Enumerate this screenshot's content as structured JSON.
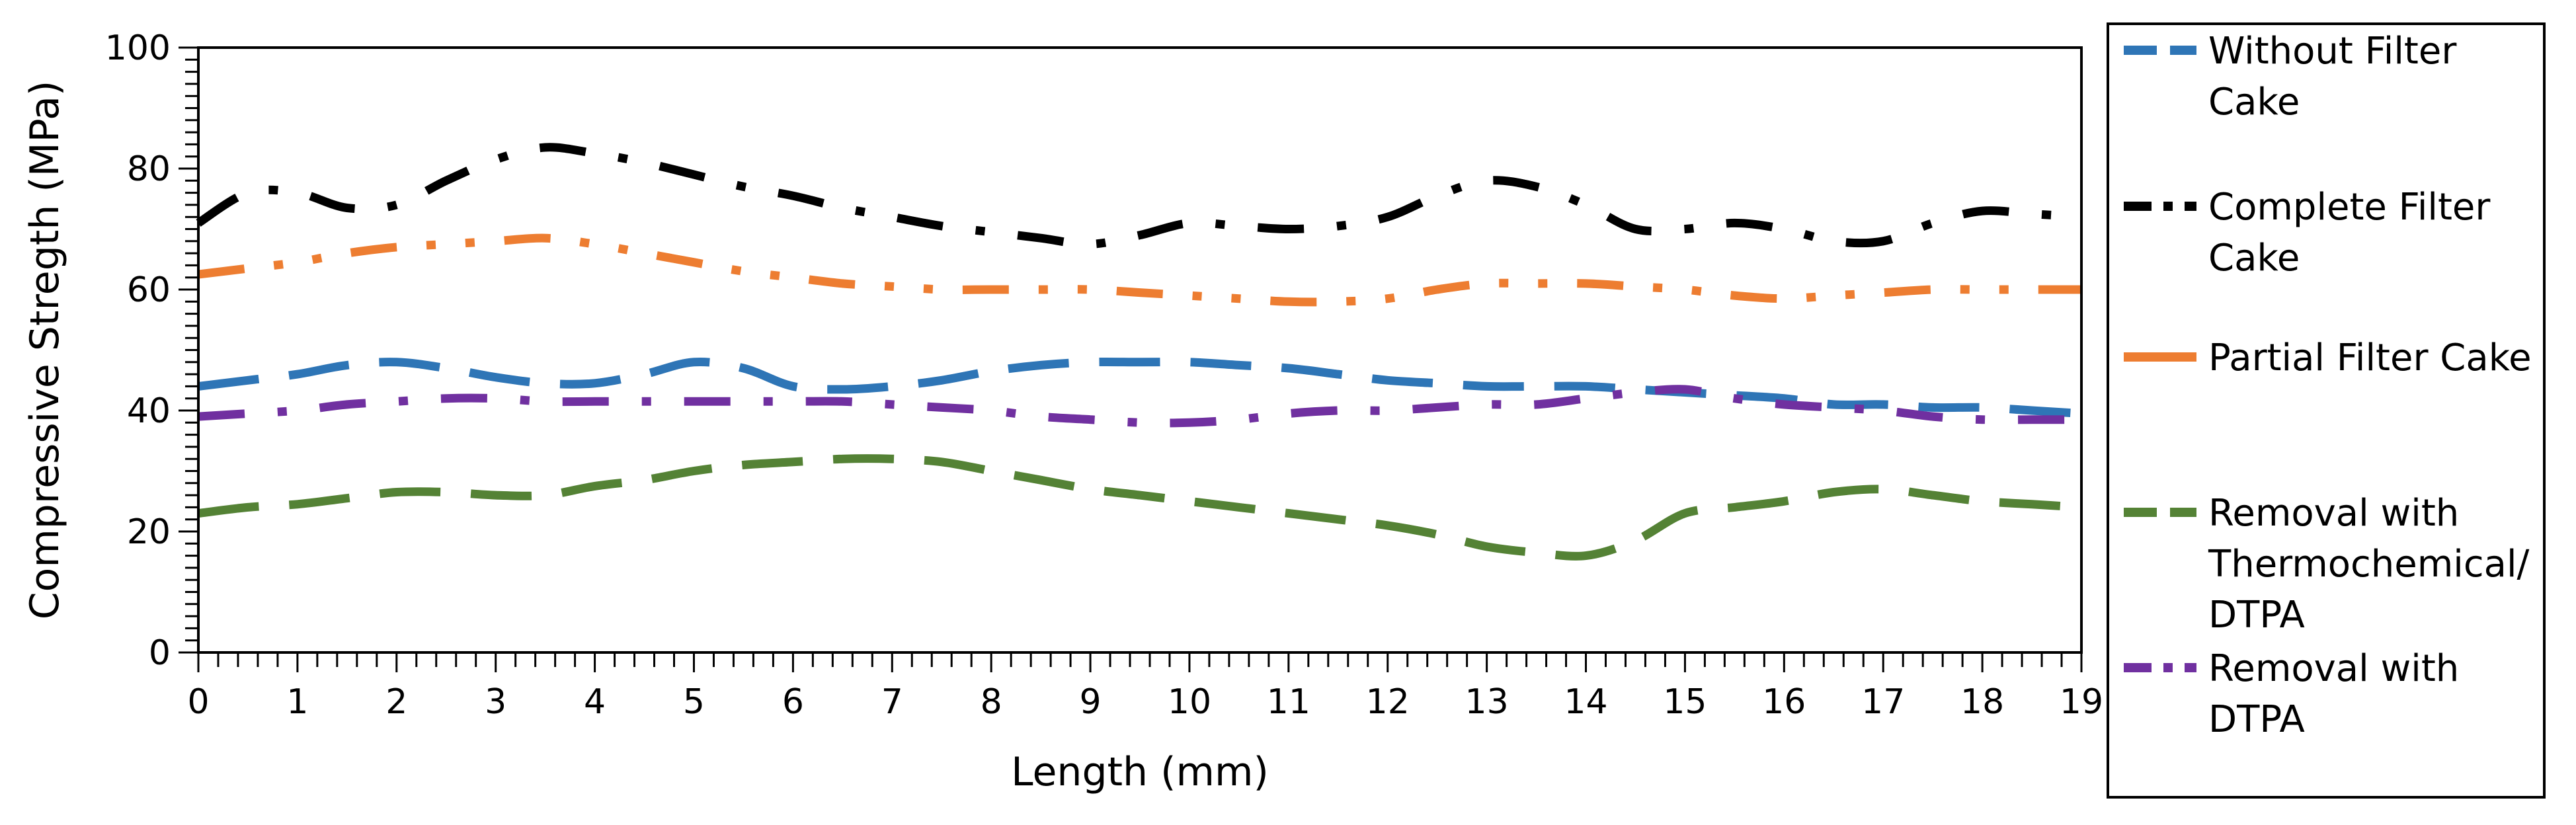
{
  "chart_data": {
    "type": "line",
    "title": "",
    "xlabel": "Length (mm)",
    "ylabel": "Compressive Stregth (MPa)",
    "xlim": [
      0,
      19
    ],
    "ylim": [
      0,
      100
    ],
    "x_ticks": [
      0,
      1,
      2,
      3,
      4,
      5,
      6,
      7,
      8,
      9,
      10,
      11,
      12,
      13,
      14,
      15,
      16,
      17,
      18,
      19
    ],
    "y_ticks": [
      0,
      20,
      40,
      60,
      80,
      100
    ],
    "legend_position": "right",
    "series": [
      {
        "name": "Without Filter Cake",
        "legend_lines": [
          "Without Filter",
          "Cake"
        ],
        "color": "#2E75B6",
        "dash": "long-dash",
        "x": [
          0,
          0.5,
          1,
          1.5,
          2,
          2.5,
          3,
          3.5,
          4,
          4.5,
          5,
          5.5,
          6,
          6.5,
          7,
          7.5,
          8,
          8.5,
          9,
          9.5,
          10,
          10.5,
          11,
          11.5,
          12,
          12.5,
          13,
          13.5,
          14,
          14.5,
          15,
          15.5,
          16,
          16.5,
          17,
          17.5,
          18,
          18.5,
          19
        ],
        "values": [
          44,
          45,
          46,
          47.5,
          48,
          47,
          45.5,
          44.5,
          44.5,
          46,
          48,
          47,
          44,
          43.5,
          44,
          45,
          46.5,
          47.5,
          48,
          48,
          48,
          47.5,
          47,
          46,
          45,
          44.5,
          44,
          44,
          44,
          43.5,
          43,
          42.5,
          42,
          41,
          41,
          40.5,
          40.5,
          40,
          39.5
        ]
      },
      {
        "name": "Complete Filter Cake",
        "legend_lines": [
          "Complete Filter",
          "Cake"
        ],
        "color": "#000000",
        "dash": "dash-dot",
        "x": [
          0,
          0.5,
          1,
          1.5,
          2,
          2.5,
          3,
          3.5,
          4,
          4.5,
          5,
          5.5,
          6,
          6.5,
          7,
          7.5,
          8,
          8.5,
          9,
          9.5,
          10,
          10.5,
          11,
          11.5,
          12,
          12.5,
          13,
          13.5,
          14,
          14.5,
          15,
          15.5,
          16,
          16.5,
          17,
          17.5,
          18,
          18.5,
          19
        ],
        "values": [
          71,
          76,
          76,
          73.5,
          74,
          78,
          81.5,
          83.5,
          82.5,
          81,
          79,
          77,
          75.5,
          73.5,
          72,
          70.5,
          69.5,
          68.5,
          67.5,
          69,
          71,
          70.5,
          70,
          70.5,
          72,
          75.5,
          78,
          77,
          74,
          70,
          70,
          71,
          70,
          68,
          68,
          71,
          73,
          72.5,
          72
        ]
      },
      {
        "name": "Partial Filter Cake",
        "legend_lines": [
          "Partial Filter Cake"
        ],
        "color": "#ED7D31",
        "dash": "dash-dot-dot",
        "x": [
          0,
          0.5,
          1,
          1.5,
          2,
          2.5,
          3,
          3.5,
          4,
          4.5,
          5,
          5.5,
          6,
          6.5,
          7,
          7.5,
          8,
          8.5,
          9,
          9.5,
          10,
          10.5,
          11,
          11.5,
          12,
          12.5,
          13,
          13.5,
          14,
          14.5,
          15,
          15.5,
          16,
          16.5,
          17,
          17.5,
          18,
          18.5,
          19
        ],
        "values": [
          62.5,
          63.5,
          64.5,
          66,
          67,
          67.5,
          68,
          68.5,
          67.5,
          66,
          64.5,
          63,
          62,
          61,
          60.5,
          60,
          60,
          60,
          60,
          59.5,
          59,
          58.5,
          58,
          58,
          58.5,
          60,
          61,
          61,
          61,
          60.5,
          60,
          59,
          58.5,
          59,
          59.5,
          60,
          60,
          60,
          60
        ]
      },
      {
        "name": "Removal with Thermochemical/ DTPA",
        "legend_lines": [
          "Removal with",
          "Thermochemical/",
          "DTPA"
        ],
        "color": "#548235",
        "dash": "long-dash",
        "x": [
          0,
          0.5,
          1,
          1.5,
          2,
          2.5,
          3,
          3.5,
          4,
          4.5,
          5,
          5.5,
          6,
          6.5,
          7,
          7.5,
          8,
          8.5,
          9,
          9.5,
          10,
          10.5,
          11,
          11.5,
          12,
          12.5,
          13,
          13.5,
          14,
          14.5,
          15,
          15.5,
          16,
          16.5,
          17,
          17.5,
          18,
          18.5,
          19
        ],
        "values": [
          23,
          24,
          24.5,
          25.5,
          26.5,
          26.5,
          26,
          26,
          27.5,
          28.5,
          30,
          31,
          31.5,
          32,
          32,
          31.5,
          30,
          28.5,
          27,
          26,
          25,
          24,
          23,
          22,
          21,
          19.5,
          17.5,
          16.5,
          16,
          18.5,
          23,
          24,
          25,
          26.5,
          27,
          26,
          25,
          24.5,
          24
        ]
      },
      {
        "name": "Removal with DTPA",
        "legend_lines": [
          "Removal with",
          "DTPA"
        ],
        "color": "#7030A0",
        "dash": "dash-dot",
        "x": [
          0,
          0.5,
          1,
          1.5,
          2,
          2.5,
          3,
          3.5,
          4,
          4.5,
          5,
          5.5,
          6,
          6.5,
          7,
          7.5,
          8,
          8.5,
          9,
          9.5,
          10,
          10.5,
          11,
          11.5,
          12,
          12.5,
          13,
          13.5,
          14,
          14.5,
          15,
          15.5,
          16,
          16.5,
          17,
          17.5,
          18,
          18.5,
          19
        ],
        "values": [
          39,
          39.5,
          40,
          41,
          41.5,
          42,
          42,
          41.5,
          41.5,
          41.5,
          41.5,
          41.5,
          41.5,
          41.5,
          41,
          40.5,
          40,
          39,
          38.5,
          38,
          38,
          38.5,
          39.5,
          40,
          40,
          40.5,
          41,
          41,
          42,
          43,
          43.5,
          42,
          41,
          40.5,
          40,
          39,
          38.5,
          38.5,
          38.5
        ]
      }
    ]
  }
}
